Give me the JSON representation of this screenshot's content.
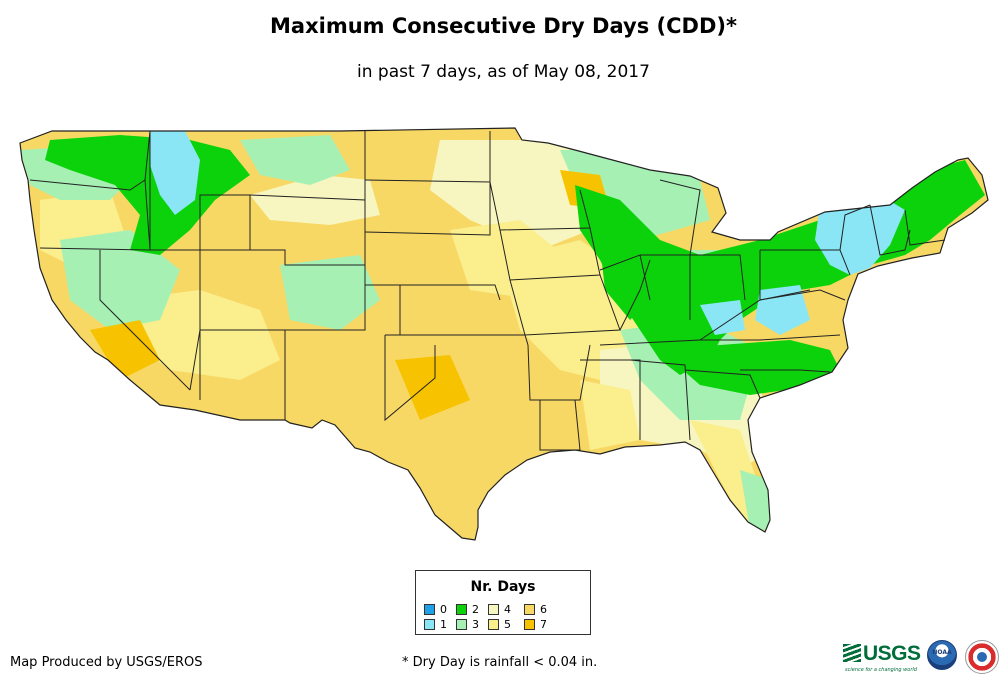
{
  "header": {
    "title": "Maximum Consecutive Dry Days (CDD)*",
    "subtitle": "in past 7 days, as of May 08, 2017"
  },
  "legend": {
    "title": "Nr. Days",
    "items": [
      {
        "label": "0",
        "color": "#1ea1e6"
      },
      {
        "label": "1",
        "color": "#8ae6f5"
      },
      {
        "label": "2",
        "color": "#0bd20b"
      },
      {
        "label": "3",
        "color": "#a6f0b4"
      },
      {
        "label": "4",
        "color": "#f8f6c0"
      },
      {
        "label": "5",
        "color": "#fbee8c"
      },
      {
        "label": "6",
        "color": "#f8d865"
      },
      {
        "label": "7",
        "color": "#f7c300"
      }
    ]
  },
  "footer": {
    "credit": "Map Produced by USGS/EROS",
    "note": "* Dry Day is rainfall < 0.04 in."
  },
  "logos": {
    "usgs": "USGS",
    "usgs_tagline": "science for a changing world",
    "noaa": "NOAA"
  }
}
